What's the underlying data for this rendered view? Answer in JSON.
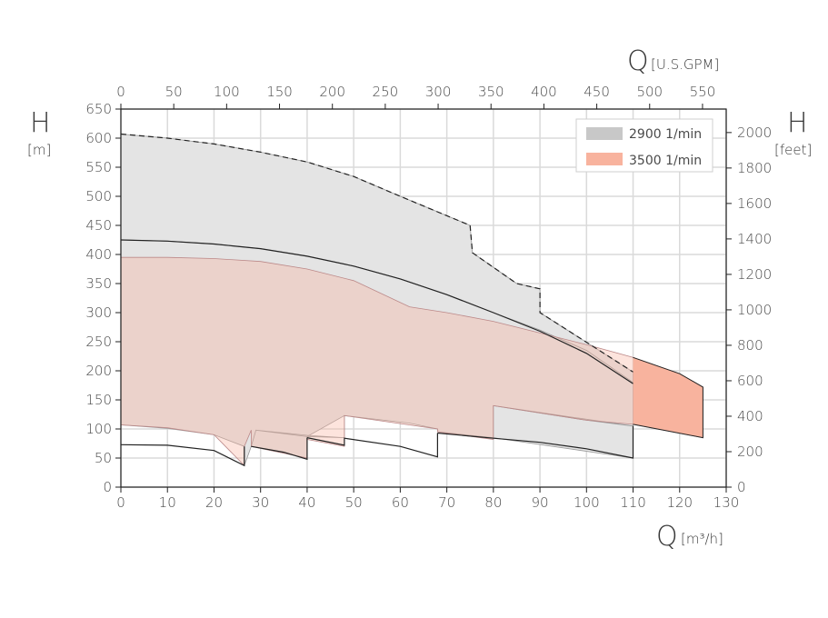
{
  "chart_data": {
    "type": "area",
    "x_axis": {
      "symbol": "Q",
      "unit": "[m³/h]",
      "min": 0,
      "max": 130,
      "ticks": [
        0,
        10,
        20,
        30,
        40,
        50,
        60,
        70,
        80,
        90,
        100,
        110,
        120,
        130
      ]
    },
    "x2_axis": {
      "symbol": "Q",
      "unit": "[U.S.GPM]",
      "min": 0,
      "max": 572.4,
      "ticks": [
        0,
        50,
        100,
        150,
        200,
        250,
        300,
        350,
        400,
        450,
        500,
        550
      ]
    },
    "y_axis": {
      "symbol": "H",
      "unit": "[m]",
      "min": 0,
      "max": 650,
      "ticks": [
        0,
        50,
        100,
        150,
        200,
        250,
        300,
        350,
        400,
        450,
        500,
        550,
        600,
        650
      ]
    },
    "y2_axis": {
      "symbol": "H",
      "unit": "[feet]",
      "min": 0,
      "max": 2132.5,
      "ticks": [
        0,
        200,
        400,
        600,
        800,
        1000,
        1200,
        1400,
        1600,
        1800,
        2000
      ]
    },
    "grid": true,
    "legend": {
      "position": "top-right",
      "entries": [
        {
          "label": "2900 1/min",
          "color": "#c8c8c8"
        },
        {
          "label": "3500 1/min",
          "color": "#f8b39e"
        }
      ]
    },
    "series": [
      {
        "name": "2900 1/min",
        "fill": "#e4e4e4",
        "regions": [
          [
            [
              0,
              607
            ],
            [
              10,
              600
            ],
            [
              20,
              590
            ],
            [
              30,
              576
            ],
            [
              40,
              559
            ],
            [
              50,
              534
            ],
            [
              60,
              500
            ],
            [
              75,
              450
            ],
            [
              75.5,
              403
            ],
            [
              85,
              350
            ],
            [
              90,
              341
            ],
            [
              90,
              300
            ],
            [
              110,
              198
            ],
            [
              110,
              180
            ],
            [
              100,
              235
            ],
            [
              90,
              270
            ],
            [
              80,
              300
            ],
            [
              70,
              331
            ],
            [
              60,
              358
            ],
            [
              50,
              380
            ],
            [
              40,
              397
            ],
            [
              30,
              410
            ],
            [
              20,
              418
            ],
            [
              10,
              423
            ],
            [
              0,
              425
            ]
          ],
          [
            [
              0,
              425
            ],
            [
              10,
              423
            ],
            [
              20,
              418
            ],
            [
              30,
              410
            ],
            [
              40,
              397
            ],
            [
              50,
              380
            ],
            [
              60,
              358
            ],
            [
              70,
              331
            ],
            [
              80,
              300
            ],
            [
              90,
              270
            ],
            [
              100,
              235
            ],
            [
              110,
              180
            ],
            [
              110,
              50
            ],
            [
              80,
              85
            ],
            [
              80,
              140
            ],
            [
              110,
              105
            ],
            [
              100,
              115
            ],
            [
              80,
              140
            ],
            [
              80,
              85
            ],
            [
              68,
              95
            ],
            [
              68,
              100
            ],
            [
              62,
              110
            ],
            [
              48,
              123
            ],
            [
              48,
              85
            ],
            [
              40,
              87
            ],
            [
              40,
              50
            ],
            [
              28,
              70
            ],
            [
              29,
              98
            ],
            [
              40,
              89
            ],
            [
              48,
              85
            ],
            [
              48,
              123
            ],
            [
              40,
              87
            ],
            [
              29,
              98
            ],
            [
              28,
              70
            ],
            [
              26.5,
              37
            ],
            [
              26.5,
              70
            ],
            [
              20,
              90
            ],
            [
              10,
              101
            ],
            [
              0,
              107
            ]
          ]
        ]
      },
      {
        "name": "3500 1/min",
        "fill": "#f8b39e",
        "regions": [
          [
            [
              0,
              395
            ],
            [
              10,
              395
            ],
            [
              20,
              393
            ],
            [
              30,
              388
            ],
            [
              40,
              375
            ],
            [
              50,
              355
            ],
            [
              62,
              310
            ],
            [
              70,
              300
            ],
            [
              80,
              285
            ],
            [
              90,
              265
            ],
            [
              100,
              245
            ],
            [
              110,
              223
            ],
            [
              120,
              195
            ],
            [
              125,
              172
            ],
            [
              125,
              85
            ],
            [
              110,
              108
            ],
            [
              100,
              115
            ],
            [
              80,
              140
            ],
            [
              80,
              82
            ],
            [
              68,
              95
            ],
            [
              68,
              100
            ],
            [
              48,
              123
            ],
            [
              48,
              70
            ],
            [
              40,
              82
            ],
            [
              40,
              50
            ],
            [
              28,
              70
            ],
            [
              28,
              98
            ],
            [
              26.5,
              70
            ],
            [
              26.5,
              37
            ],
            [
              20,
              90
            ],
            [
              10,
              102
            ],
            [
              0,
              107
            ]
          ]
        ]
      }
    ],
    "lines": [
      {
        "style": "dashed",
        "points": [
          [
            0,
            607
          ],
          [
            10,
            600
          ],
          [
            20,
            590
          ],
          [
            30,
            576
          ],
          [
            40,
            559
          ],
          [
            50,
            534
          ],
          [
            60,
            500
          ],
          [
            75,
            450
          ],
          [
            75.5,
            403
          ],
          [
            85,
            350
          ],
          [
            90,
            341
          ],
          [
            90,
            300
          ],
          [
            100,
            249
          ],
          [
            110,
            198
          ]
        ]
      },
      {
        "style": "solid",
        "points": [
          [
            0,
            425
          ],
          [
            10,
            423
          ],
          [
            20,
            418
          ],
          [
            30,
            410
          ],
          [
            40,
            397
          ],
          [
            50,
            380
          ],
          [
            60,
            358
          ],
          [
            70,
            331
          ],
          [
            80,
            300
          ],
          [
            90,
            268
          ],
          [
            100,
            230
          ],
          [
            110,
            178
          ]
        ]
      },
      {
        "style": "solid-thin",
        "points": [
          [
            110,
            223
          ],
          [
            120,
            195
          ],
          [
            125,
            172
          ],
          [
            125,
            85
          ],
          [
            110,
            108
          ]
        ]
      },
      {
        "style": "solid",
        "points": [
          [
            0,
            73
          ],
          [
            10,
            72
          ],
          [
            20,
            63
          ],
          [
            26.5,
            37
          ],
          [
            26.5,
            70
          ]
        ]
      },
      {
        "style": "solid",
        "points": [
          [
            28,
            70
          ],
          [
            35,
            60
          ],
          [
            40,
            48
          ],
          [
            40,
            85
          ]
        ]
      },
      {
        "style": "solid",
        "points": [
          [
            40,
            85
          ],
          [
            48,
            72
          ],
          [
            48,
            84
          ],
          [
            60,
            70
          ],
          [
            68,
            52
          ],
          [
            68,
            93
          ]
        ]
      },
      {
        "style": "solid",
        "points": [
          [
            68,
            93
          ],
          [
            80,
            84
          ],
          [
            90,
            77
          ],
          [
            100,
            66
          ],
          [
            110,
            50
          ],
          [
            110,
            105
          ]
        ]
      }
    ]
  }
}
